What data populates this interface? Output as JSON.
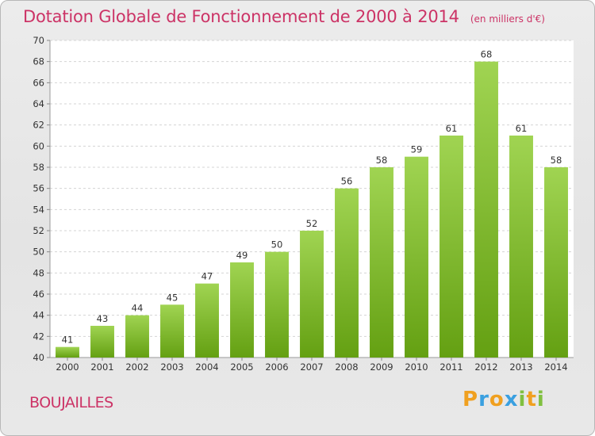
{
  "header": {
    "title": "Dotation Globale de Fonctionnement de 2000 à 2014",
    "unit": "(en milliers d'€)"
  },
  "commune": "BOUJAILLES",
  "logo": {
    "letters": [
      "P",
      "r",
      "o",
      "x",
      "i",
      "t",
      "i"
    ],
    "colors": [
      "#f0a020",
      "#3aa0e0",
      "#f0a020",
      "#3aa0e0",
      "#80c040",
      "#f0a020",
      "#80c040"
    ]
  },
  "colors": {
    "bar_top": "#a0d452",
    "bar_bottom": "#64a012",
    "accent": "#cc3366"
  },
  "chart_data": {
    "type": "bar",
    "title": "Dotation Globale de Fonctionnement de 2000 à 2014",
    "subtitle": "(en milliers d'€)",
    "categories": [
      "2000",
      "2001",
      "2002",
      "2003",
      "2004",
      "2005",
      "2006",
      "2007",
      "2008",
      "2009",
      "2010",
      "2011",
      "2012",
      "2013",
      "2014"
    ],
    "values": [
      41,
      43,
      44,
      45,
      47,
      49,
      50,
      52,
      56,
      58,
      59,
      61,
      68,
      61,
      58
    ],
    "ylim": [
      40,
      70
    ],
    "yticks": [
      40,
      42,
      44,
      46,
      48,
      50,
      52,
      54,
      56,
      58,
      60,
      62,
      64,
      66,
      68,
      70
    ],
    "grid": true
  }
}
